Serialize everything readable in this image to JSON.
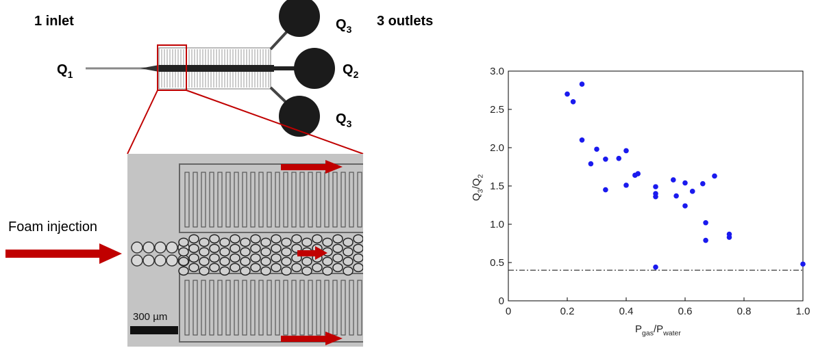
{
  "diagram": {
    "inlet_label": "1 inlet",
    "outlets_label": "3 outlets",
    "flow_labels": [
      [
        {
          "text": "Q"
        },
        {
          "text": "3",
          "sub": true
        }
      ],
      [
        {
          "text": "Q"
        },
        {
          "text": "1",
          "sub": true
        }
      ],
      [
        {
          "text": "Q"
        },
        {
          "text": "2",
          "sub": true
        }
      ],
      [
        {
          "text": "Q"
        },
        {
          "text": "3",
          "sub": true
        }
      ]
    ],
    "foam_label": "Foam injection",
    "scale_label": "300 µm"
  },
  "chart_data": {
    "type": "scatter",
    "xlabel": [
      {
        "text": "P"
      },
      {
        "text": "gas",
        "sub": true
      },
      {
        "text": "/P"
      },
      {
        "text": "water",
        "sub": true
      }
    ],
    "ylabel": [
      {
        "text": "Q"
      },
      {
        "text": "3",
        "sub": true
      },
      {
        "text": "/Q"
      },
      {
        "text": "2",
        "sub": true
      }
    ],
    "x": [
      0.2,
      0.22,
      0.25,
      0.25,
      0.28,
      0.3,
      0.33,
      0.33,
      0.375,
      0.4,
      0.4,
      0.43,
      0.44,
      0.5,
      0.5,
      0.5,
      0.5,
      0.56,
      0.57,
      0.6,
      0.6,
      0.625,
      0.66,
      0.67,
      0.67,
      0.7,
      0.75,
      0.75,
      1.0
    ],
    "values": [
      2.7,
      2.6,
      2.83,
      2.1,
      1.79,
      1.98,
      1.85,
      1.45,
      1.86,
      1.96,
      1.51,
      1.64,
      1.66,
      1.49,
      1.4,
      1.36,
      0.44,
      1.58,
      1.37,
      1.54,
      1.24,
      1.43,
      1.53,
      1.02,
      0.79,
      1.63,
      0.87,
      0.83,
      0.48
    ],
    "color": "#1a1aee",
    "reference_line": 0.4,
    "xlim": [
      0,
      1.0
    ],
    "ylim": [
      0,
      3.0
    ],
    "xticks": [
      0,
      0.2,
      0.4,
      0.6,
      0.8,
      {
        "value": 1,
        "label": "1.0"
      }
    ],
    "yticks": [
      0,
      0.5,
      {
        "value": 1,
        "label": "1.0"
      },
      1.5,
      {
        "value": 2,
        "label": "2.0"
      },
      2.5,
      {
        "value": 3,
        "label": "3.0"
      }
    ]
  }
}
